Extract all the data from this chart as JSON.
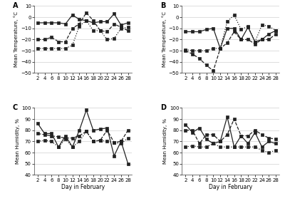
{
  "days": [
    2,
    4,
    6,
    8,
    10,
    12,
    14,
    16,
    18,
    20,
    22,
    24,
    26,
    28
  ],
  "panel_A": {
    "label": "A",
    "ylabel": "Mean Temperature, °C",
    "ylim": [
      -50,
      10
    ],
    "yticks": [
      -50,
      -40,
      -30,
      -20,
      -10,
      0,
      10
    ],
    "series": [
      {
        "values": [
          -5,
          -5,
          -5,
          -5,
          -6,
          2,
          -2,
          -3,
          -5,
          -4,
          -4,
          3,
          -7,
          -5
        ],
        "marker": "s",
        "linestyle": "-"
      },
      {
        "values": [
          -20,
          -20,
          -18,
          -22,
          -22,
          -10,
          -6,
          4,
          -3,
          -12,
          -13,
          -6,
          -9,
          -12
        ],
        "marker": "s",
        "linestyle": "--"
      },
      {
        "values": [
          -28,
          -28,
          -28,
          -28,
          -28,
          -25,
          -8,
          -3,
          -12,
          -12,
          -20,
          -19,
          -10,
          -9
        ],
        "marker": "s",
        "linestyle": ":"
      }
    ]
  },
  "panel_B": {
    "label": "B",
    "ylabel": "Mean Temperature, °C",
    "ylim": [
      -50,
      10
    ],
    "yticks": [
      -50,
      -40,
      -30,
      -20,
      -10,
      0,
      10
    ],
    "series": [
      {
        "values": [
          -13,
          -13,
          -13,
          -11,
          -10,
          -28,
          -10,
          -10,
          -20,
          -9,
          -22,
          -20,
          -15,
          -12
        ],
        "marker": "s",
        "linestyle": "-"
      },
      {
        "values": [
          -30,
          -33,
          -37,
          -43,
          -48,
          -28,
          -23,
          -13,
          -20,
          -20,
          -24,
          -20,
          -20,
          -15
        ],
        "marker": "s",
        "linestyle": "--"
      },
      {
        "values": [
          -29,
          -30,
          -30,
          -30,
          -28,
          -28,
          -4,
          2,
          -11,
          -8,
          -22,
          -7,
          -8,
          -12
        ],
        "marker": "s",
        "linestyle": ":"
      }
    ]
  },
  "panel_C": {
    "label": "C",
    "ylabel": "Mean Humidity, %",
    "ylim": [
      40,
      100
    ],
    "yticks": [
      40,
      50,
      60,
      70,
      80,
      90,
      100
    ],
    "xlabel": "Day in February",
    "series": [
      {
        "values": [
          86,
          77,
          77,
          65,
          75,
          65,
          80,
          98,
          80,
          81,
          82,
          57,
          70,
          50
        ],
        "marker": "s",
        "linestyle": "-"
      },
      {
        "values": [
          77,
          76,
          75,
          74,
          73,
          73,
          75,
          79,
          70,
          71,
          80,
          69,
          70,
          80
        ],
        "marker": "s",
        "linestyle": "--"
      },
      {
        "values": [
          70,
          71,
          70,
          65,
          72,
          65,
          70,
          79,
          70,
          71,
          70,
          69,
          68,
          73
        ],
        "marker": "s",
        "linestyle": ":"
      }
    ]
  },
  "panel_D": {
    "label": "D",
    "ylabel": "Mean Humidity, %",
    "ylim": [
      40,
      100
    ],
    "yticks": [
      40,
      50,
      60,
      70,
      80,
      90,
      100
    ],
    "xlabel": "Day in February",
    "series": [
      {
        "values": [
          85,
          78,
          82,
          72,
          68,
          70,
          92,
          65,
          75,
          68,
          78,
          65,
          70,
          68
        ],
        "marker": "s",
        "linestyle": "-"
      },
      {
        "values": [
          80,
          80,
          68,
          76,
          76,
          70,
          76,
          90,
          75,
          75,
          80,
          76,
          73,
          72
        ],
        "marker": "s",
        "linestyle": "--"
      },
      {
        "values": [
          65,
          66,
          65,
          65,
          68,
          65,
          65,
          65,
          65,
          65,
          65,
          62,
          60,
          62
        ],
        "marker": "s",
        "linestyle": ":"
      }
    ]
  },
  "line_color": "#222222",
  "marker_size": 3.5,
  "linewidth": 0.9
}
